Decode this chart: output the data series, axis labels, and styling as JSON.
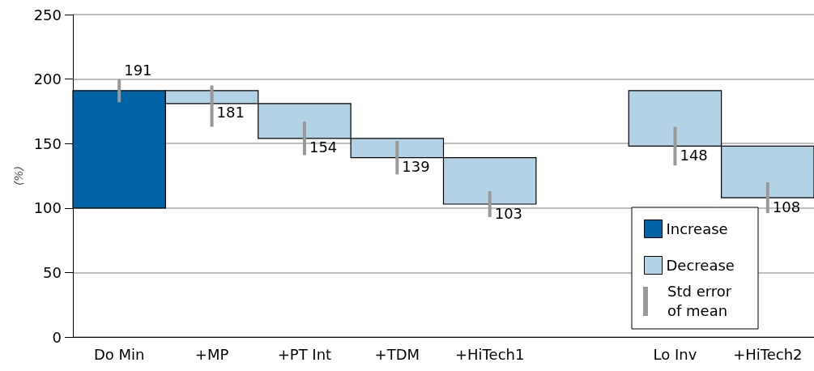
{
  "chart_data": {
    "type": "bar",
    "ylabel": "(%)",
    "categories": [
      "Do Min",
      "+MP",
      "+PT Int",
      "+TDM",
      "+HiTech1",
      null,
      "Lo Inv",
      "+HiTech2"
    ],
    "series": [
      {
        "name": "Increase",
        "color": "#0063a6",
        "values": [
          91,
          null,
          null,
          null,
          null,
          null,
          null,
          null
        ],
        "base": [
          100,
          null,
          null,
          null,
          null,
          null,
          null,
          null
        ],
        "errors": [
          [
            182,
            200
          ],
          null,
          null,
          null,
          null,
          null,
          null,
          null
        ]
      },
      {
        "name": "Decrease",
        "color": "#b3d2e6",
        "values": [
          null,
          -10,
          -27,
          -15,
          -36,
          null,
          -43,
          -40
        ],
        "base": [
          null,
          191,
          181,
          154,
          139,
          null,
          191,
          148
        ],
        "errors": [
          null,
          [
            163,
            195
          ],
          [
            141,
            167
          ],
          [
            126,
            152
          ],
          [
            93,
            113
          ],
          null,
          [
            133,
            163
          ],
          [
            96,
            120
          ]
        ]
      }
    ],
    "annotations": [
      {
        "text": "191",
        "x": "Do Min",
        "y": 191
      },
      {
        "text": "181",
        "x": "+MP",
        "y": 181
      },
      {
        "text": "154",
        "x": "+PT Int",
        "y": 154
      },
      {
        "text": "139",
        "x": "+TDM",
        "y": 139
      },
      {
        "text": "103",
        "x": "+HiTech1",
        "y": 103
      },
      {
        "text": "148",
        "x": "Lo Inv",
        "y": 148
      },
      {
        "text": "108",
        "x": "+HiTech2",
        "y": 108
      },
      "Std error of mean"
    ],
    "ylim": [
      0,
      250
    ],
    "yticks": [
      0,
      50,
      100,
      150,
      200,
      250
    ],
    "grid": "y",
    "legend": "bottom right"
  }
}
